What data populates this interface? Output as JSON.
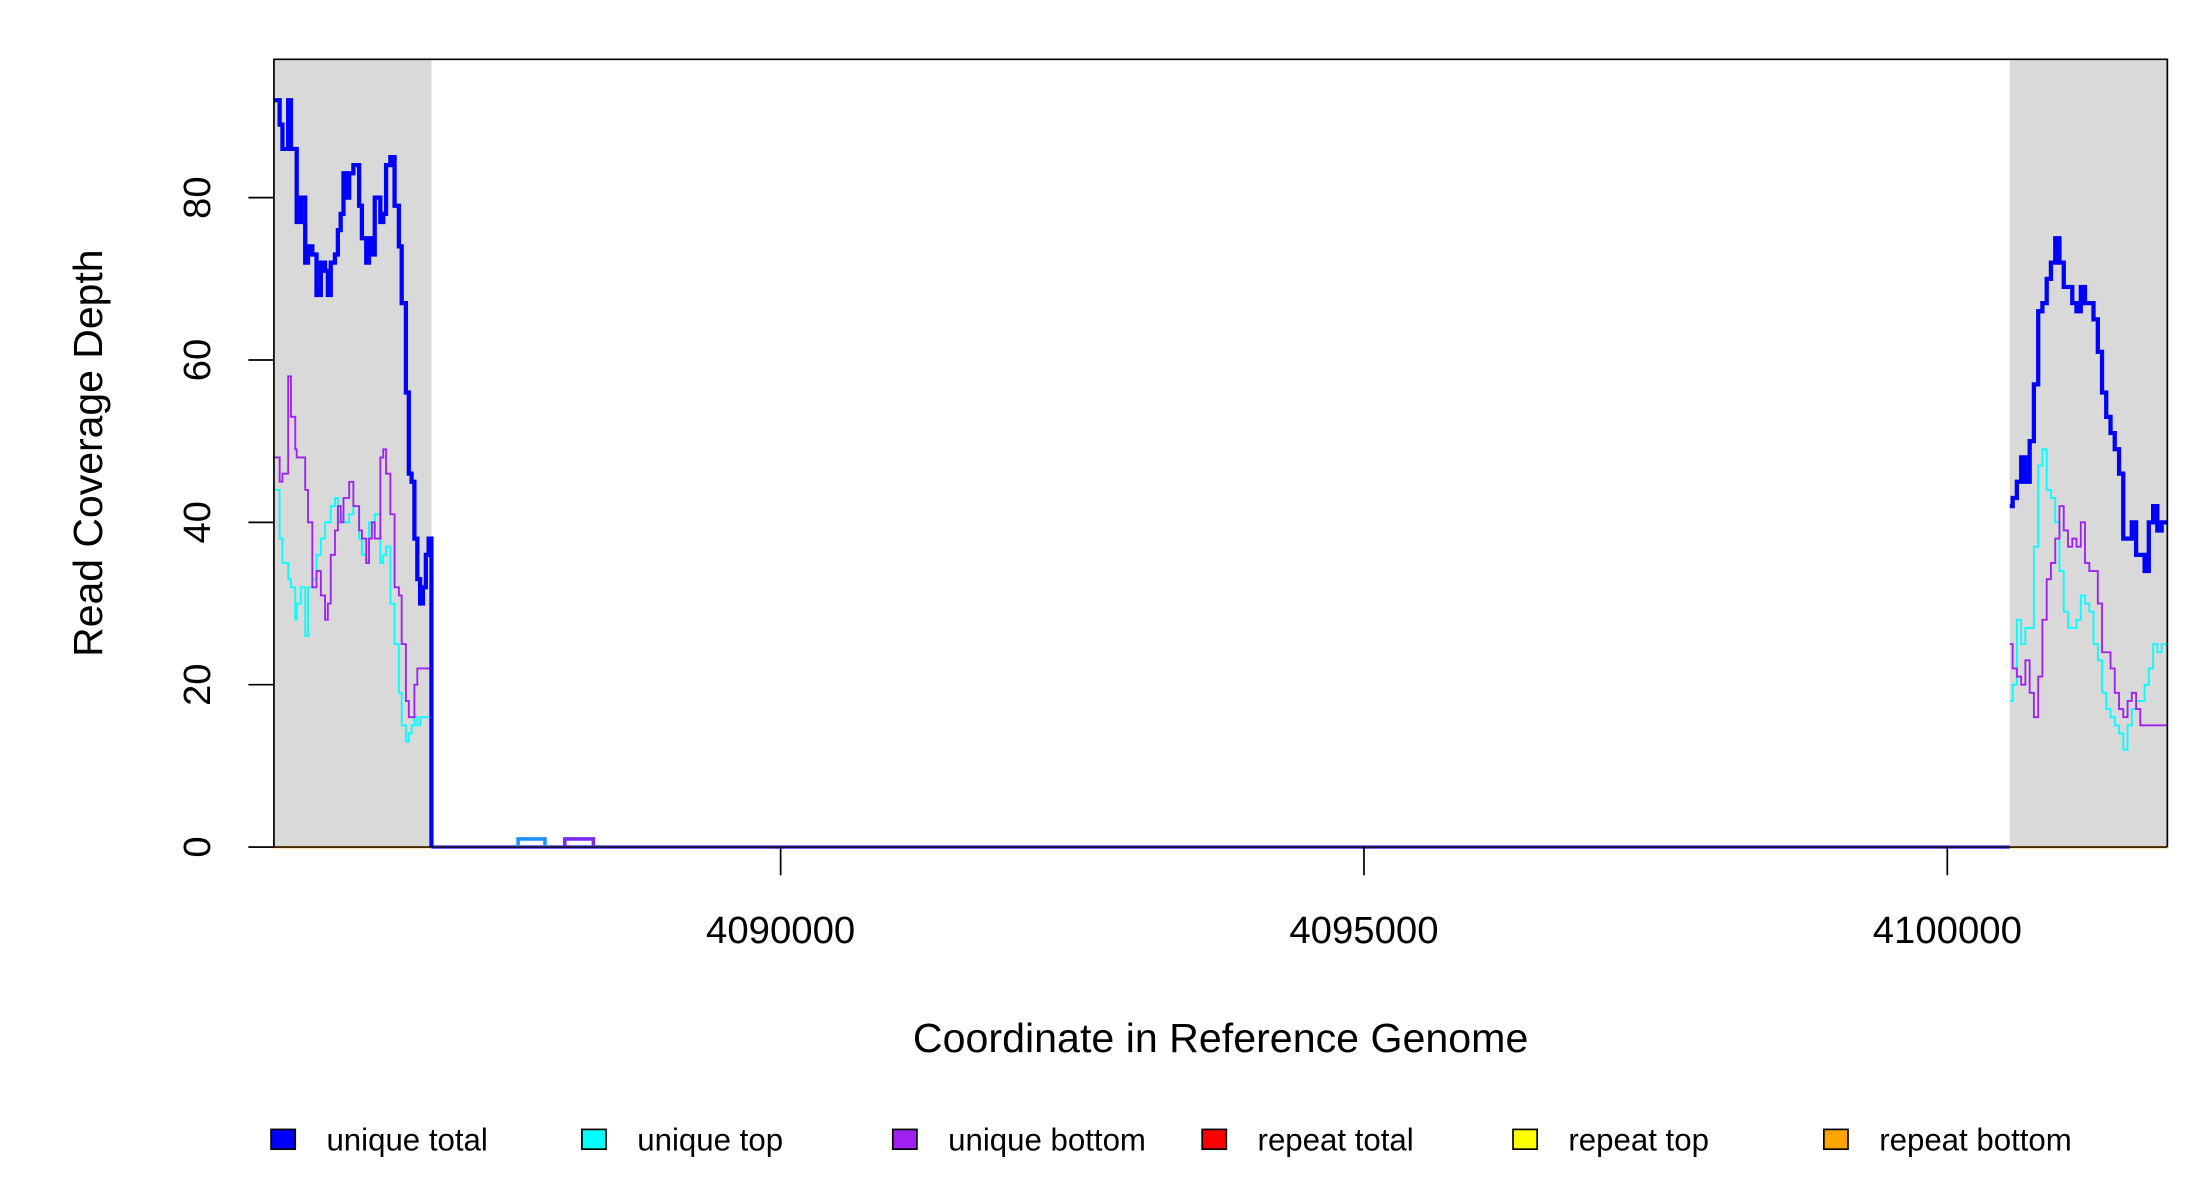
{
  "chart_data": {
    "type": "line",
    "title": "",
    "xlabel": "Coordinate in Reference Genome",
    "ylabel": "Read Coverage Depth",
    "xlim": [
      4085657,
      4101886
    ],
    "ylim": [
      0,
      97
    ],
    "x_ticks": [
      4090000,
      4095000,
      4100000
    ],
    "x_tick_labels": [
      "4090000",
      "4095000",
      "4100000"
    ],
    "y_ticks": [
      0,
      20,
      40,
      60,
      80
    ],
    "y_tick_labels": [
      "0",
      "20",
      "40",
      "60",
      "80"
    ],
    "grid": false,
    "shaded_regions": [
      [
        4085657,
        4087007
      ],
      [
        4100535,
        4101886
      ]
    ],
    "shade_color": "#d9d9d9",
    "legend_position": "bottom",
    "legend": [
      {
        "label": "unique total",
        "color": "#0000ff"
      },
      {
        "label": "unique top",
        "color": "#00ffff"
      },
      {
        "label": "unique bottom",
        "color": "#a020f0"
      },
      {
        "label": "repeat total",
        "color": "#ff0000"
      },
      {
        "label": "repeat top",
        "color": "#ffff00"
      },
      {
        "label": "repeat bottom",
        "color": "#ffa500"
      }
    ],
    "left_x": [
      4085657,
      4085706,
      4085730,
      4085779,
      4085803,
      4085840,
      4085852,
      4085888,
      4085925,
      4085949,
      4085986,
      4086022,
      4086059,
      4086095,
      4086119,
      4086144,
      4086180,
      4086205,
      4086229,
      4086253,
      4086278,
      4086302,
      4086338,
      4086387,
      4086411,
      4086448,
      4086472,
      4086496,
      4086521,
      4086569,
      4086594,
      4086618,
      4086655,
      4086691,
      4086728,
      4086752,
      4086788,
      4086813,
      4086837,
      4086861,
      4086886,
      4086910,
      4086934,
      4086959,
      4086983,
      4087007
    ],
    "right_x": [
      4100535,
      4100560,
      4100596,
      4100633,
      4100669,
      4100706,
      4100742,
      4100779,
      4100815,
      4100852,
      4100888,
      4100925,
      4100961,
      4100998,
      4101034,
      4101071,
      4101107,
      4101144,
      4101180,
      4101217,
      4101253,
      4101290,
      4101326,
      4101362,
      4101399,
      4101435,
      4101472,
      4101508,
      4101545,
      4101581,
      4101618,
      4101654,
      4101691,
      4101727,
      4101764,
      4101800,
      4101837,
      4101886
    ],
    "series": [
      {
        "name": "unique total",
        "color": "#0000ff",
        "left": [
          92,
          89,
          86,
          92,
          86,
          86,
          77,
          80,
          72,
          74,
          73,
          68,
          72,
          71,
          68,
          72,
          73,
          76,
          78,
          83,
          80,
          83,
          84,
          79,
          75,
          72,
          75,
          73,
          80,
          77,
          78,
          84,
          85,
          79,
          74,
          67,
          56,
          46,
          45,
          38,
          33,
          30,
          32,
          36,
          38,
          0
        ],
        "right": [
          42,
          43,
          45,
          48,
          45,
          50,
          57,
          66,
          67,
          70,
          72,
          75,
          72,
          69,
          69,
          67,
          66,
          69,
          67,
          67,
          65,
          61,
          56,
          53,
          51,
          49,
          46,
          38,
          38,
          40,
          36,
          36,
          34,
          40,
          42,
          39,
          40,
          40
        ]
      },
      {
        "name": "unique top",
        "color": "#00ffff",
        "left": [
          44,
          38,
          35,
          33,
          32,
          28,
          30,
          32,
          26,
          32,
          33,
          36,
          38,
          40,
          40,
          42,
          43,
          40,
          41,
          40,
          40,
          41,
          42,
          38,
          36,
          35,
          40,
          39,
          41,
          35,
          36,
          37,
          30,
          25,
          19,
          15,
          13,
          14,
          15,
          16,
          15,
          16,
          16,
          16,
          16,
          0
        ],
        "right": [
          18,
          20,
          28,
          25,
          27,
          27,
          37,
          47,
          49,
          44,
          43,
          40,
          34,
          29,
          27,
          27,
          28,
          31,
          30,
          29,
          25,
          23,
          19,
          17,
          16,
          15,
          14,
          12,
          15,
          17,
          18,
          18,
          20,
          22,
          25,
          24,
          25,
          25
        ]
      },
      {
        "name": "unique bottom",
        "color": "#a020f0",
        "left": [
          48,
          45,
          46,
          58,
          53,
          49,
          48,
          48,
          44,
          40,
          32,
          34,
          31,
          28,
          30,
          36,
          39,
          42,
          40,
          43,
          43,
          45,
          42,
          39,
          38,
          35,
          38,
          40,
          38,
          48,
          49,
          46,
          41,
          32,
          31,
          25,
          18,
          16,
          16,
          20,
          22,
          22,
          22,
          22,
          22,
          0
        ],
        "right": [
          25,
          22,
          21,
          20,
          23,
          19,
          16,
          21,
          28,
          33,
          35,
          38,
          42,
          39,
          37,
          38,
          37,
          40,
          35,
          34,
          34,
          30,
          24,
          24,
          22,
          19,
          17,
          16,
          18,
          19,
          17,
          15,
          15,
          15,
          15,
          15,
          15,
          15
        ]
      },
      {
        "name": "repeat total",
        "color": "#ff0000",
        "left": [],
        "right": []
      },
      {
        "name": "repeat top",
        "color": "#ffff00",
        "left": [],
        "right": []
      },
      {
        "name": "repeat bottom",
        "color": "#ffa500",
        "left": [],
        "right": []
      }
    ],
    "gap_blips": [
      {
        "color": "#1e90ff",
        "x": [
          4087750,
          4087980
        ],
        "value": 1
      },
      {
        "color": "#7b2cf0",
        "x": [
          4088150,
          4088395
        ],
        "value": 1
      }
    ]
  }
}
